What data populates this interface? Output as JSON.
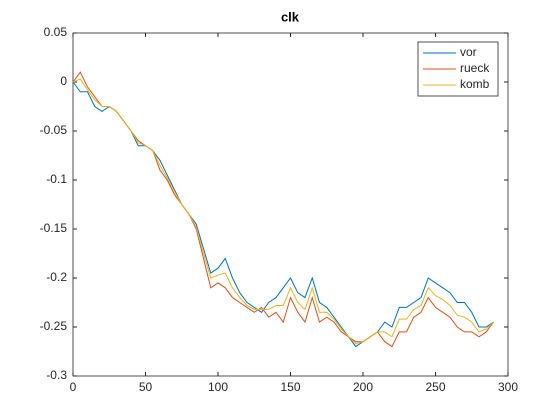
{
  "chart_data": {
    "type": "line",
    "title": "clk",
    "x": [
      0,
      5,
      10,
      15,
      20,
      25,
      30,
      35,
      40,
      45,
      50,
      55,
      60,
      65,
      70,
      75,
      80,
      85,
      90,
      95,
      100,
      105,
      110,
      115,
      120,
      125,
      130,
      135,
      140,
      145,
      150,
      155,
      160,
      165,
      170,
      175,
      180,
      185,
      190,
      195,
      200,
      205,
      210,
      215,
      220,
      225,
      230,
      235,
      240,
      245,
      250,
      255,
      260,
      265,
      270,
      275,
      280,
      285,
      290
    ],
    "series": [
      {
        "name": "vor",
        "color": "#0072bd",
        "values": [
          0,
          -0.01,
          -0.01,
          -0.025,
          -0.03,
          -0.025,
          -0.03,
          -0.04,
          -0.05,
          -0.065,
          -0.065,
          -0.07,
          -0.08,
          -0.095,
          -0.11,
          -0.125,
          -0.135,
          -0.145,
          -0.17,
          -0.195,
          -0.19,
          -0.18,
          -0.2,
          -0.215,
          -0.225,
          -0.23,
          -0.235,
          -0.225,
          -0.22,
          -0.21,
          -0.2,
          -0.215,
          -0.22,
          -0.2,
          -0.225,
          -0.23,
          -0.24,
          -0.25,
          -0.26,
          -0.27,
          -0.265,
          -0.26,
          -0.255,
          -0.245,
          -0.25,
          -0.23,
          -0.23,
          -0.225,
          -0.22,
          -0.2,
          -0.205,
          -0.21,
          -0.215,
          -0.225,
          -0.225,
          -0.235,
          -0.25,
          -0.25,
          -0.245
        ]
      },
      {
        "name": "rueck",
        "color": "#d95319",
        "values": [
          0,
          0.01,
          -0.005,
          -0.015,
          -0.025,
          -0.025,
          -0.03,
          -0.04,
          -0.05,
          -0.06,
          -0.065,
          -0.07,
          -0.09,
          -0.1,
          -0.115,
          -0.125,
          -0.135,
          -0.15,
          -0.18,
          -0.21,
          -0.205,
          -0.21,
          -0.22,
          -0.225,
          -0.23,
          -0.235,
          -0.23,
          -0.24,
          -0.235,
          -0.245,
          -0.22,
          -0.235,
          -0.245,
          -0.22,
          -0.245,
          -0.24,
          -0.245,
          -0.255,
          -0.26,
          -0.265,
          -0.265,
          -0.26,
          -0.255,
          -0.265,
          -0.27,
          -0.255,
          -0.255,
          -0.24,
          -0.235,
          -0.22,
          -0.23,
          -0.235,
          -0.24,
          -0.25,
          -0.255,
          -0.255,
          -0.26,
          -0.255,
          -0.245
        ]
      },
      {
        "name": "komb",
        "color": "#edb120",
        "values": [
          0,
          0.003,
          -0.008,
          -0.018,
          -0.025,
          -0.025,
          -0.03,
          -0.04,
          -0.05,
          -0.062,
          -0.065,
          -0.07,
          -0.085,
          -0.098,
          -0.112,
          -0.125,
          -0.135,
          -0.148,
          -0.175,
          -0.2,
          -0.197,
          -0.195,
          -0.21,
          -0.22,
          -0.228,
          -0.232,
          -0.232,
          -0.232,
          -0.228,
          -0.228,
          -0.21,
          -0.225,
          -0.232,
          -0.21,
          -0.235,
          -0.235,
          -0.242,
          -0.252,
          -0.26,
          -0.267,
          -0.265,
          -0.26,
          -0.255,
          -0.255,
          -0.26,
          -0.242,
          -0.242,
          -0.232,
          -0.228,
          -0.21,
          -0.218,
          -0.222,
          -0.228,
          -0.238,
          -0.24,
          -0.245,
          -0.255,
          -0.252,
          -0.245
        ]
      }
    ],
    "xlim": [
      0,
      300
    ],
    "xticks": [
      0,
      50,
      100,
      150,
      200,
      250,
      300
    ],
    "ylim": [
      -0.3,
      0.05
    ],
    "yticks": [
      0.05,
      0,
      -0.05,
      -0.1,
      -0.15,
      -0.2,
      -0.25,
      -0.3
    ],
    "legend": "northeast",
    "grid": false
  }
}
